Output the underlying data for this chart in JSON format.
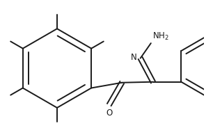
{
  "bg_color": "#ffffff",
  "line_color": "#1a1a1a",
  "text_color": "#1a1a1a",
  "fig_width": 3.06,
  "fig_height": 1.84,
  "dpi": 100,
  "lw": 1.4,
  "ring_r": 0.28,
  "ph_r": 0.22
}
